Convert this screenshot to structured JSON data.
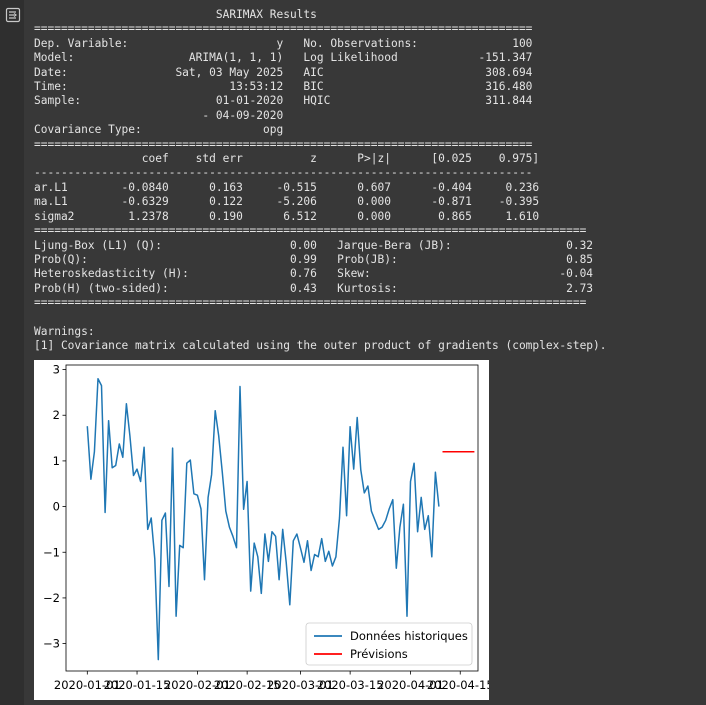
{
  "output_icon": "output-arrow-icon",
  "summary_lines": [
    "                           SARIMAX Results                                ",
    "==========================================================================",
    "Dep. Variable:                      y   No. Observations:              100",
    "Model:                 ARIMA(1, 1, 1)   Log Likelihood            -151.347",
    "Date:                Sat, 03 May 2025   AIC                        308.694",
    "Time:                        13:53:12   BIC                        316.480",
    "Sample:                    01-01-2020   HQIC                       311.844",
    "                         - 04-09-2020                                     ",
    "Covariance Type:                  opg                                     ",
    "==========================================================================",
    "                coef    std err          z      P>|z|      [0.025    0.975]",
    "--------------------------------------------------------------------------",
    "ar.L1        -0.0840      0.163     -0.515      0.607      -0.404     0.236",
    "ma.L1        -0.6329      0.122     -5.206      0.000      -0.871    -0.395",
    "sigma2        1.2378      0.190      6.512      0.000       0.865     1.610",
    "==================================================================================",
    "Ljung-Box (L1) (Q):                   0.00   Jarque-Bera (JB):                 0.32",
    "Prob(Q):                              0.99   Prob(JB):                         0.85",
    "Heteroskedasticity (H):               0.76   Skew:                            -0.04",
    "Prob(H) (two-sided):                  0.43   Kurtosis:                         2.73",
    "=================================================================================="
  ],
  "warnings_title": "Warnings:",
  "warnings_text": "[1] Covariance matrix calculated using the outer product of gradients (complex-step).",
  "chart_data": {
    "type": "line",
    "title": "",
    "xlabel": "",
    "ylabel": "",
    "x_ticks": [
      "2020-01-01",
      "2020-01-15",
      "2020-02-01",
      "2020-02-15",
      "2020-03-01",
      "2020-03-15",
      "2020-04-01",
      "2020-04-15"
    ],
    "y_ticks": [
      -3,
      -2,
      -1,
      0,
      1,
      2,
      3
    ],
    "xlim": [
      "2019-12-26",
      "2020-04-20"
    ],
    "ylim": [
      -3.6,
      3.1
    ],
    "grid": false,
    "legend_position": "lower-right",
    "series": [
      {
        "name": "Données historiques",
        "color": "#1f77b4",
        "start": "2020-01-01",
        "values": [
          1.76,
          0.6,
          1.2,
          2.8,
          2.65,
          -0.13,
          1.88,
          0.85,
          0.9,
          1.37,
          1.08,
          2.25,
          1.55,
          0.68,
          0.82,
          0.55,
          1.3,
          -0.5,
          -0.25,
          -1.15,
          -3.35,
          -0.3,
          -0.14,
          -1.75,
          1.28,
          -2.4,
          -0.85,
          -0.9,
          0.95,
          1.02,
          0.28,
          0.25,
          -0.05,
          -1.6,
          0.2,
          0.7,
          2.1,
          1.55,
          0.75,
          -0.1,
          -0.45,
          -0.65,
          -0.9,
          2.63,
          -0.06,
          0.55,
          -1.85,
          -0.8,
          -1.1,
          -1.9,
          -0.6,
          -1.2,
          -0.55,
          -0.65,
          -1.6,
          -0.5,
          -1.22,
          -2.15,
          -0.75,
          -0.6,
          -0.9,
          -1.22,
          -0.75,
          -1.4,
          -1.05,
          -1.1,
          -0.7,
          -1.2,
          -0.98,
          -1.3,
          -1.1,
          -0.25,
          1.3,
          -0.2,
          1.75,
          0.82,
          1.95,
          0.8,
          0.3,
          0.45,
          -0.1,
          -0.3,
          -0.5,
          -0.45,
          -0.3,
          -0.05,
          0.15,
          -1.35,
          -0.45,
          0.05,
          -2.4,
          0.55,
          0.95,
          -0.55,
          0.2,
          -0.5,
          -0.2,
          -1.1,
          0.75,
          0.0
        ]
      },
      {
        "name": "Prévisions",
        "color": "#ff0000",
        "start": "2020-04-10",
        "values": [
          1.2,
          1.2,
          1.2,
          1.2,
          1.2,
          1.2,
          1.2,
          1.2,
          1.2,
          1.2
        ]
      }
    ]
  }
}
